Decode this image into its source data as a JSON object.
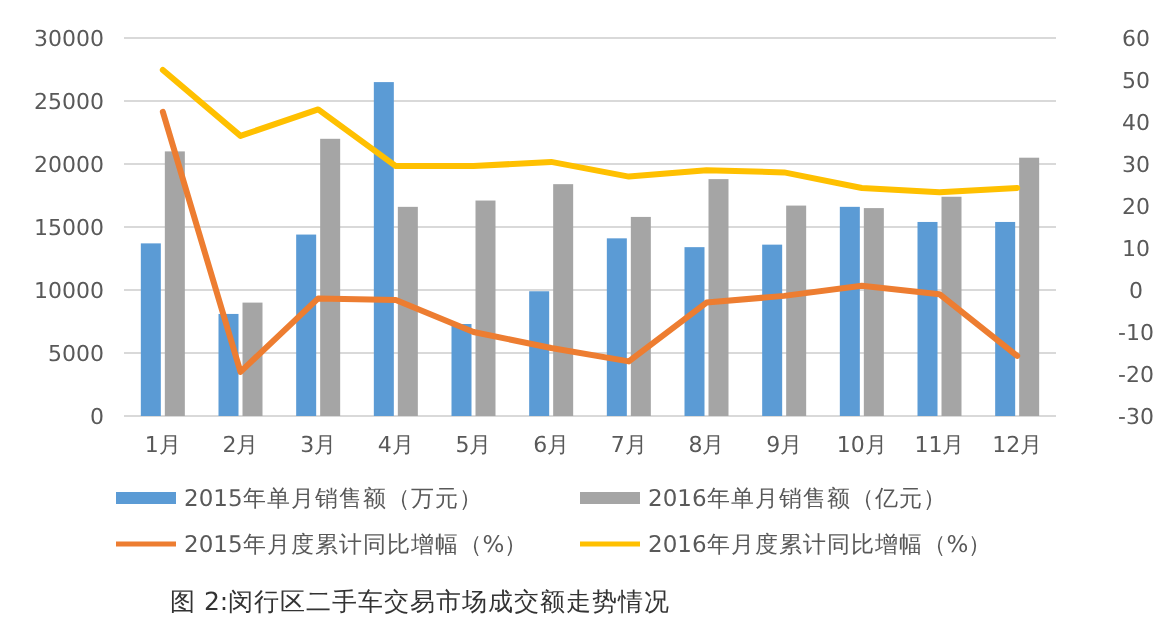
{
  "chart_data": {
    "type": "bar",
    "categories": [
      "1月",
      "2月",
      "3月",
      "4月",
      "5月",
      "6月",
      "7月",
      "8月",
      "9月",
      "10月",
      "11月",
      "12月"
    ],
    "series": [
      {
        "name": "2015年单月销售额（万元）",
        "color": "#5b9bd5",
        "values": [
          13700,
          8100,
          14400,
          26500,
          7300,
          9900,
          14100,
          13400,
          13600,
          16600,
          15400,
          15400
        ]
      },
      {
        "name": "2016年单月销售额（亿元）",
        "color": "#a5a5a5",
        "values": [
          21000,
          9000,
          22000,
          16600,
          17100,
          18400,
          15800,
          18800,
          16700,
          16500,
          17400,
          20500
        ]
      },
      {
        "name": "2015年月度累计同比增幅（%）",
        "type": "line",
        "axis": "y2",
        "color": "#ed7d31",
        "values": [
          42.4,
          -19.5,
          -2,
          -2.4,
          -10,
          -13.8,
          -17,
          -3,
          -1.4,
          1,
          -1,
          -15.7
        ]
      },
      {
        "name": "2016年月度累计同比增幅（%）",
        "type": "line",
        "axis": "y2",
        "color": "#ffc000",
        "values": [
          52.4,
          36.7,
          43,
          29.5,
          29.5,
          30.5,
          27,
          28.5,
          28,
          24.3,
          23.3,
          24.3
        ]
      }
    ],
    "ylim": [
      0,
      30000
    ],
    "yticks": [
      0,
      5000,
      10000,
      15000,
      20000,
      25000,
      30000
    ],
    "y2lim": [
      -30,
      60
    ],
    "y2ticks": [
      -30,
      -20,
      -10,
      0,
      10,
      20,
      30,
      40,
      50,
      60
    ],
    "grid": "y",
    "legend": "bottom",
    "annotations": [
      "图 2:闵行区二手车交易市场成交额走势情况"
    ]
  }
}
